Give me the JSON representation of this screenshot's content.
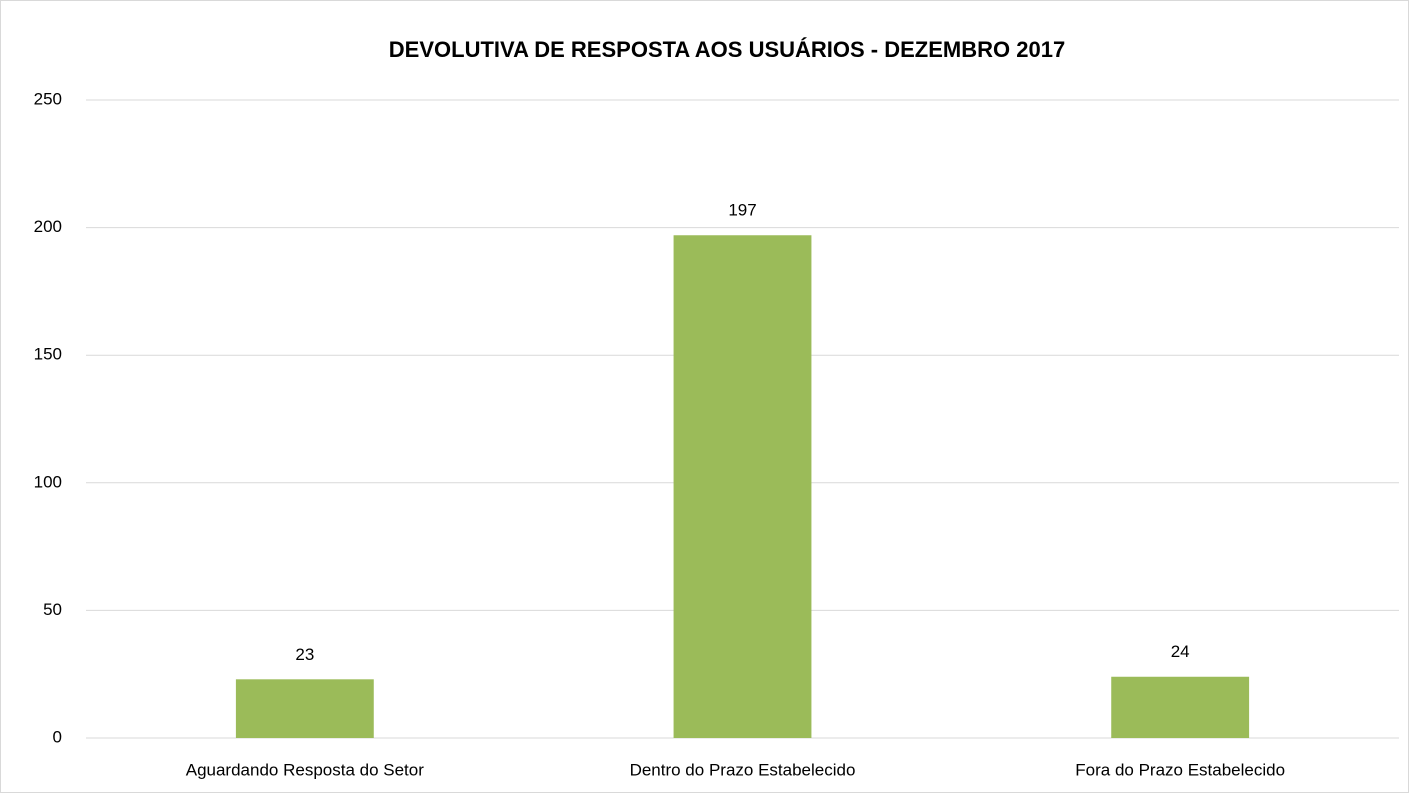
{
  "chart_data": {
    "type": "bar",
    "title": "DEVOLUTIVA DE RESPOSTA AOS USUÁRIOS - DEZEMBRO 2017",
    "categories": [
      "Aguardando Resposta do Setor",
      "Dentro do Prazo Estabelecido",
      "Fora do Prazo Estabelecido"
    ],
    "values": [
      23,
      197,
      24
    ],
    "color": "#9bbb59",
    "ylim": [
      0,
      250
    ],
    "yticks": [
      0,
      50,
      100,
      150,
      200,
      250
    ],
    "grid": true
  }
}
